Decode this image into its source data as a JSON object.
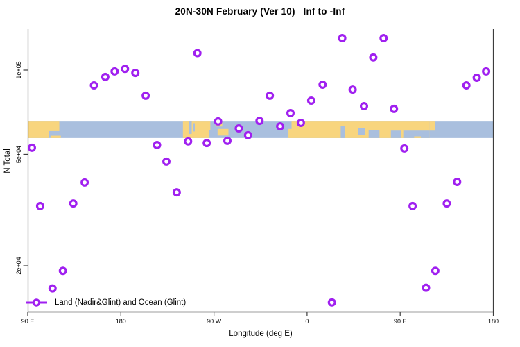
{
  "title": "20N-30N February (Ver 10)   Inf to -Inf",
  "legend": {
    "label": "Land (Nadir&Glint) and Ocean (Glint)"
  },
  "colors": {
    "marker": "#A020F0",
    "land": "#F8D57E",
    "ocean": "#A9BFDE",
    "axis": "#3d3d3d",
    "text": "#000000"
  },
  "chart_data": {
    "type": "scatter",
    "title": "20N-30N February (Ver 10)   Inf to -Inf",
    "xlabel": "Longitude (deg E)",
    "ylabel": "N Total",
    "x_axis": {
      "range": [
        90,
        540
      ],
      "ticks": [
        {
          "lon": 90,
          "label": "90 E"
        },
        {
          "lon": 180,
          "label": "180"
        },
        {
          "lon": 270,
          "label": "90 W"
        },
        {
          "lon": 360,
          "label": "0"
        },
        {
          "lon": 450,
          "label": "90 E"
        },
        {
          "lon": 540,
          "label": "180"
        }
      ]
    },
    "y_axis": {
      "scale": "log",
      "range": [
        13000,
        140000
      ],
      "ticks": [
        {
          "value": 100000,
          "label": "1e+05"
        },
        {
          "value": 50000,
          "label": "5e+04"
        },
        {
          "value": 20000,
          "label": "2e+04"
        }
      ]
    },
    "series": [
      {
        "name": "Land (Nadir&Glint) and Ocean (Glint)",
        "marker": "open-circle",
        "color": "#A020F0",
        "points": [
          [
            94,
            52800
          ],
          [
            102,
            32700
          ],
          [
            114,
            16600
          ],
          [
            124,
            19200
          ],
          [
            134,
            33400
          ],
          [
            145,
            39700
          ],
          [
            154,
            88200
          ],
          [
            165,
            94500
          ],
          [
            174,
            98900
          ],
          [
            184,
            101000
          ],
          [
            194,
            97700
          ],
          [
            204,
            81000
          ],
          [
            215,
            54000
          ],
          [
            224,
            47100
          ],
          [
            234,
            36600
          ],
          [
            245,
            55600
          ],
          [
            254,
            115000
          ],
          [
            263,
            54900
          ],
          [
            274,
            65600
          ],
          [
            283,
            55900
          ],
          [
            294,
            61900
          ],
          [
            303,
            58500
          ],
          [
            314,
            65900
          ],
          [
            324,
            81000
          ],
          [
            334,
            63000
          ],
          [
            344,
            70200
          ],
          [
            354,
            64800
          ],
          [
            364,
            77800
          ],
          [
            375,
            88700
          ],
          [
            384,
            14800
          ],
          [
            394,
            130000
          ],
          [
            404,
            85200
          ],
          [
            415,
            74300
          ],
          [
            424,
            111000
          ],
          [
            434,
            130000
          ],
          [
            444,
            72700
          ],
          [
            454,
            52500
          ],
          [
            462,
            32700
          ],
          [
            475,
            16700
          ],
          [
            484,
            19200
          ],
          [
            495,
            33400
          ],
          [
            505,
            39900
          ],
          [
            514,
            88200
          ],
          [
            524,
            93900
          ],
          [
            533,
            98900
          ]
        ]
      }
    ],
    "map_band": {
      "description": "world coastline strip for 20N-30N drawn across plot",
      "land_color": "#F8D57E",
      "ocean_color": "#A9BFDE",
      "n_top": 65500,
      "n_bottom": 57200,
      "land_segments": [
        [
          90,
          110.5,
          0,
          1
        ],
        [
          110.5,
          120.5,
          0,
          0.58
        ],
        [
          112,
          122,
          0.86,
          1
        ],
        [
          240,
          265,
          0,
          1
        ],
        [
          265,
          266.5,
          0,
          0.5
        ],
        [
          271.5,
          278,
          0,
          0.3
        ],
        [
          273.5,
          284,
          0.45,
          0.85
        ],
        [
          342,
          346,
          0.45,
          1
        ],
        [
          345,
          478.5,
          0,
          1
        ],
        [
          478.5,
          483.5,
          0,
          0.55
        ]
      ],
      "ocean_cutouts": [
        [
          246,
          248.5,
          0,
          0.75
        ],
        [
          249.5,
          251.5,
          0.1,
          0.6
        ],
        [
          392.5,
          396.5,
          0.25,
          1
        ],
        [
          409,
          416,
          0.4,
          0.8
        ],
        [
          419.5,
          430,
          0.5,
          1
        ],
        [
          441,
          451,
          0.55,
          1
        ],
        [
          453,
          462,
          0.55,
          1
        ],
        [
          462,
          478.5,
          0.55,
          1
        ]
      ],
      "land_specks": [
        [
          463.5,
          470,
          0.9,
          1
        ]
      ]
    }
  }
}
